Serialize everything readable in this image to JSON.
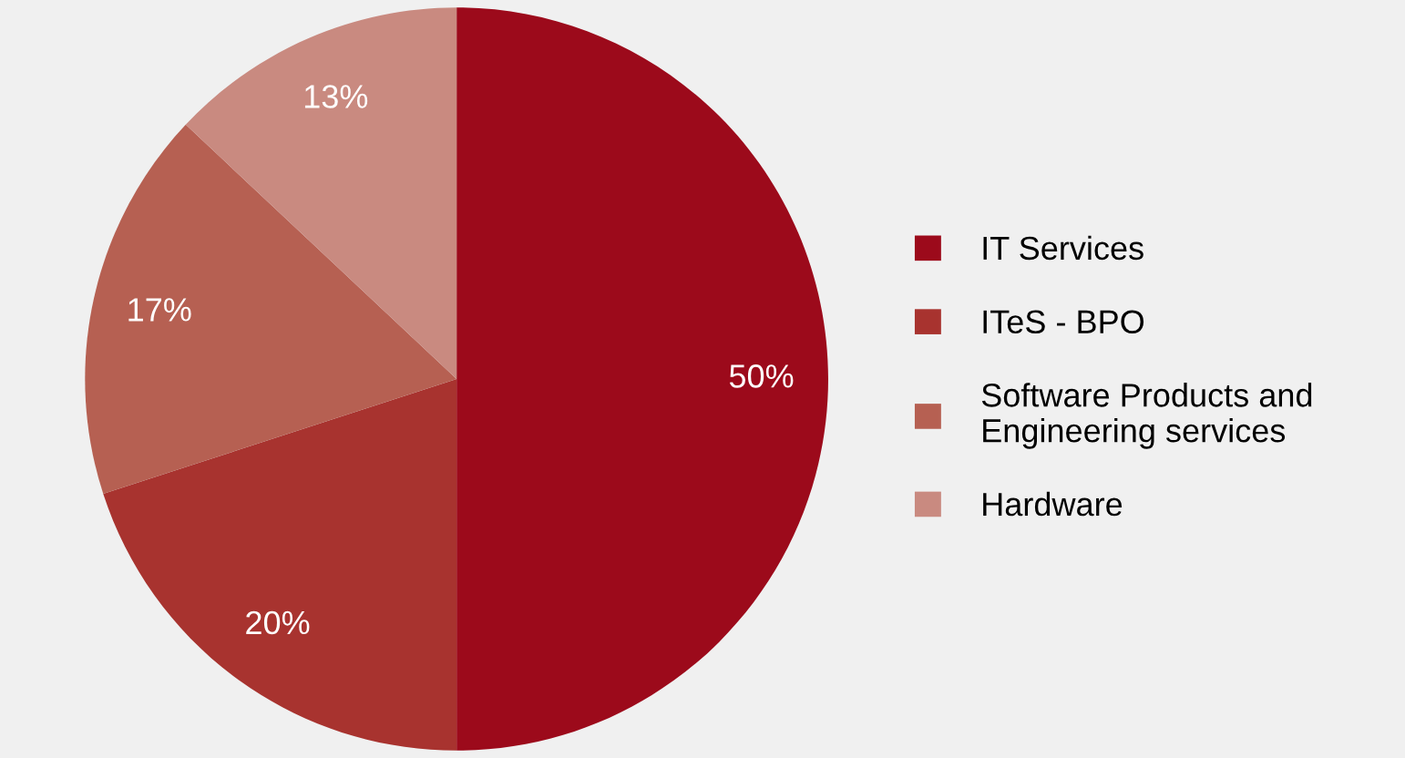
{
  "chart_data": {
    "type": "pie",
    "categories": [
      "IT Services",
      "ITeS - BPO",
      "Software Products and\nEngineering services",
      "Hardware"
    ],
    "values": [
      50,
      20,
      17,
      13
    ],
    "value_labels": [
      "50%",
      "20%",
      "17%",
      "13%"
    ],
    "colors": [
      "#9c0a1b",
      "#a8332f",
      "#b66052",
      "#c98a80"
    ],
    "legend": "right"
  }
}
